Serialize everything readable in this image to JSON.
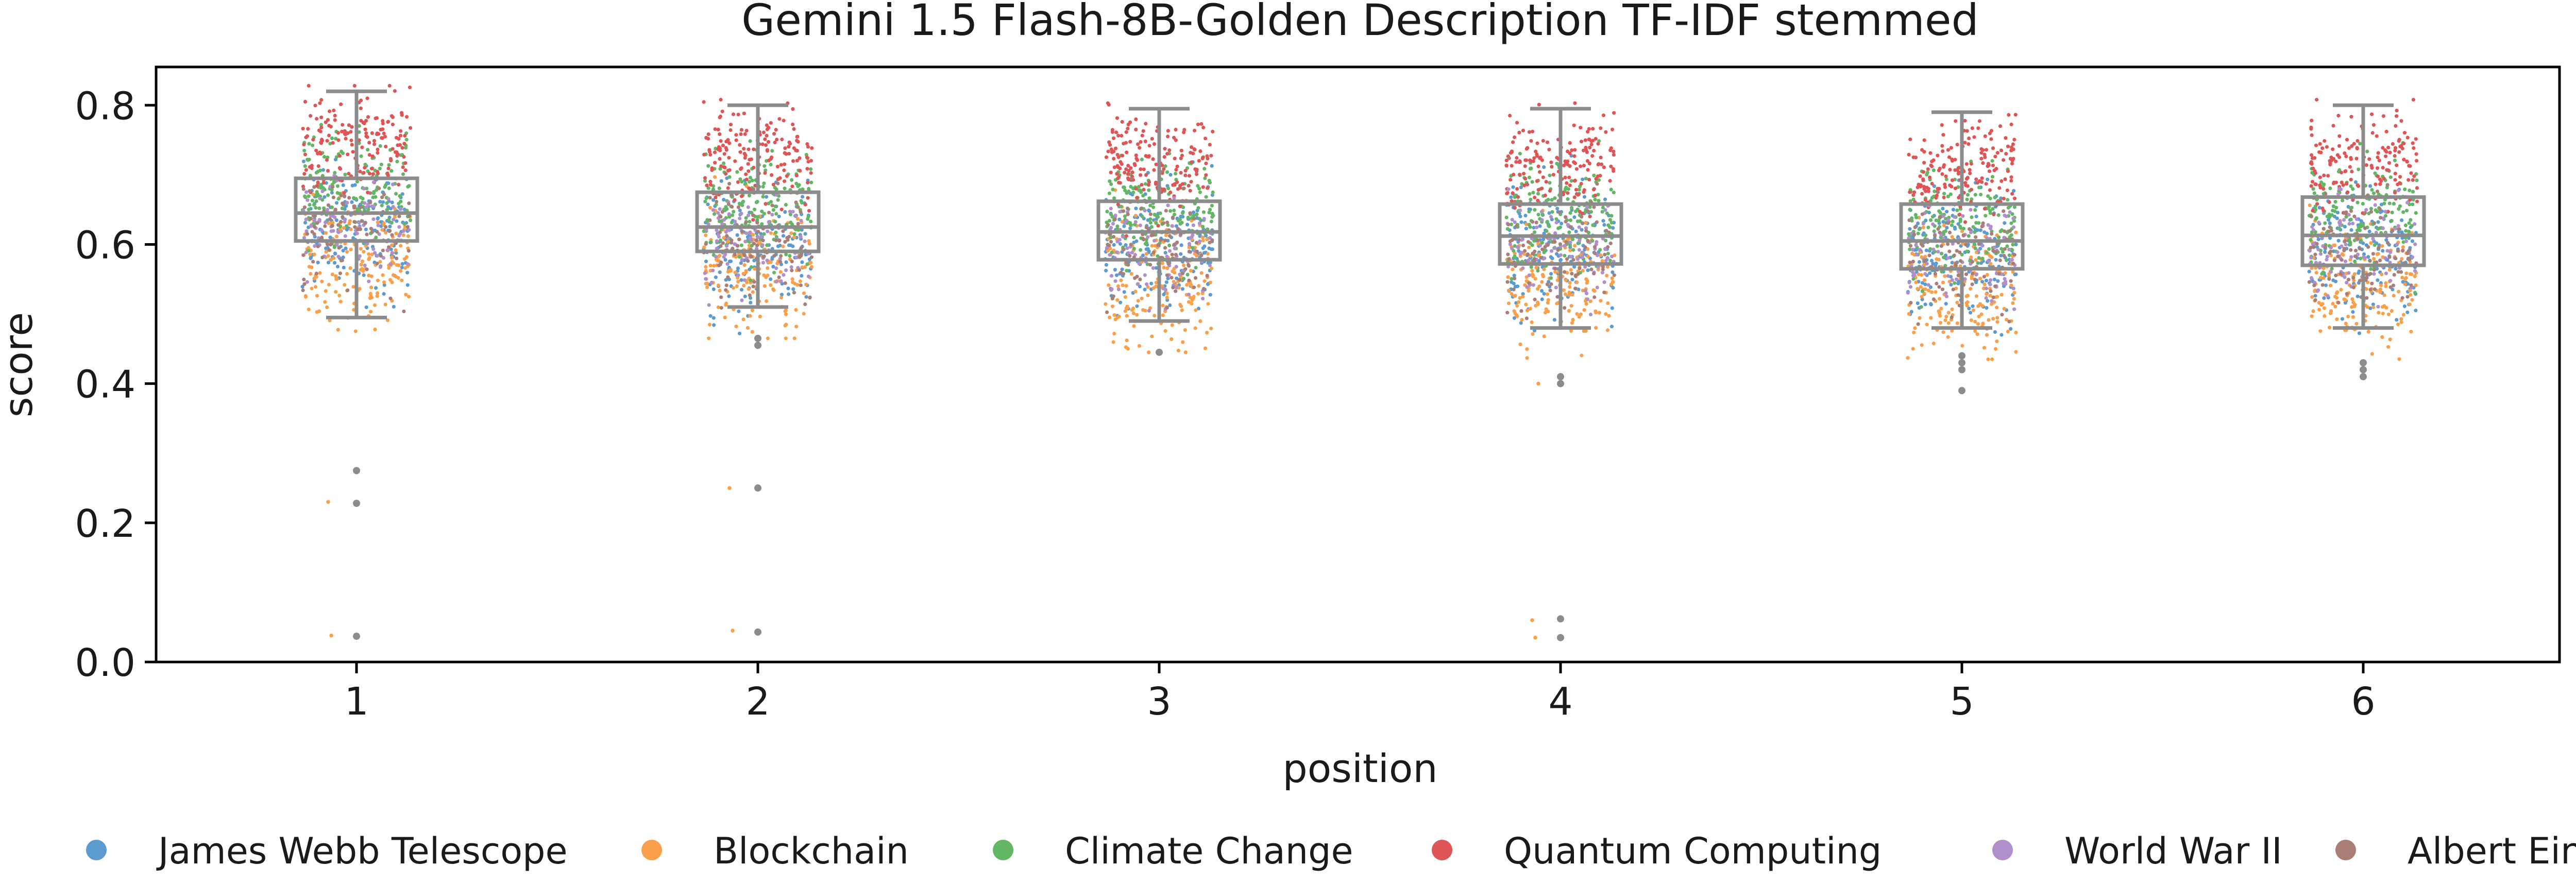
{
  "chart_data": {
    "type": "box",
    "title": "Gemini 1.5 Flash-8B-Golden Description TF-IDF stemmed",
    "xlabel": "position",
    "ylabel": "score",
    "categories": [
      "1",
      "2",
      "3",
      "4",
      "5",
      "6"
    ],
    "ylim": [
      0.0,
      0.855
    ],
    "yticks": [
      0.0,
      0.2,
      0.4,
      0.6,
      0.8
    ],
    "ytick_labels": [
      "0.0",
      "0.2",
      "0.4",
      "0.6",
      "0.8"
    ],
    "grid": false,
    "legend_position": "bottom",
    "series": [
      {
        "name": "James Webb Telescope",
        "color": "#5b9bd0"
      },
      {
        "name": "Blockchain",
        "color": "#fba04a"
      },
      {
        "name": "Climate Change",
        "color": "#62b664"
      },
      {
        "name": "Quantum Computing",
        "color": "#df5454"
      },
      {
        "name": "World War II",
        "color": "#b08fcc"
      },
      {
        "name": "Albert Einstein",
        "color": "#a87e77"
      }
    ],
    "boxes": [
      {
        "position": "1",
        "whislo": 0.495,
        "q1": 0.605,
        "med": 0.645,
        "q3": 0.695,
        "whishi": 0.82,
        "fliers": [
          0.275,
          0.228,
          0.037
        ]
      },
      {
        "position": "2",
        "whislo": 0.51,
        "q1": 0.59,
        "med": 0.625,
        "q3": 0.675,
        "whishi": 0.8,
        "fliers": [
          0.465,
          0.455,
          0.25,
          0.043
        ]
      },
      {
        "position": "3",
        "whislo": 0.49,
        "q1": 0.578,
        "med": 0.618,
        "q3": 0.662,
        "whishi": 0.795,
        "fliers": [
          0.445
        ]
      },
      {
        "position": "4",
        "whislo": 0.48,
        "q1": 0.572,
        "med": 0.612,
        "q3": 0.658,
        "whishi": 0.795,
        "fliers": [
          0.41,
          0.4,
          0.062,
          0.035
        ]
      },
      {
        "position": "5",
        "whislo": 0.48,
        "q1": 0.565,
        "med": 0.605,
        "q3": 0.658,
        "whishi": 0.79,
        "fliers": [
          0.44,
          0.43,
          0.42,
          0.39
        ]
      },
      {
        "position": "6",
        "whislo": 0.48,
        "q1": 0.57,
        "med": 0.613,
        "q3": 0.668,
        "whishi": 0.8,
        "fliers": [
          0.43,
          0.42,
          0.41
        ]
      }
    ],
    "points": [
      {
        "position": "1",
        "outliers": [
          {
            "value": 0.23,
            "series": "Blockchain"
          },
          {
            "value": 0.038,
            "series": "Blockchain"
          }
        ]
      },
      {
        "position": "2",
        "outliers": [
          {
            "value": 0.25,
            "series": "Blockchain"
          },
          {
            "value": 0.045,
            "series": "Blockchain"
          }
        ]
      },
      {
        "position": "4",
        "outliers": [
          {
            "value": 0.06,
            "series": "Blockchain"
          },
          {
            "value": 0.035,
            "series": "Blockchain"
          },
          {
            "value": 0.4,
            "series": "Blockchain"
          }
        ]
      }
    ]
  }
}
